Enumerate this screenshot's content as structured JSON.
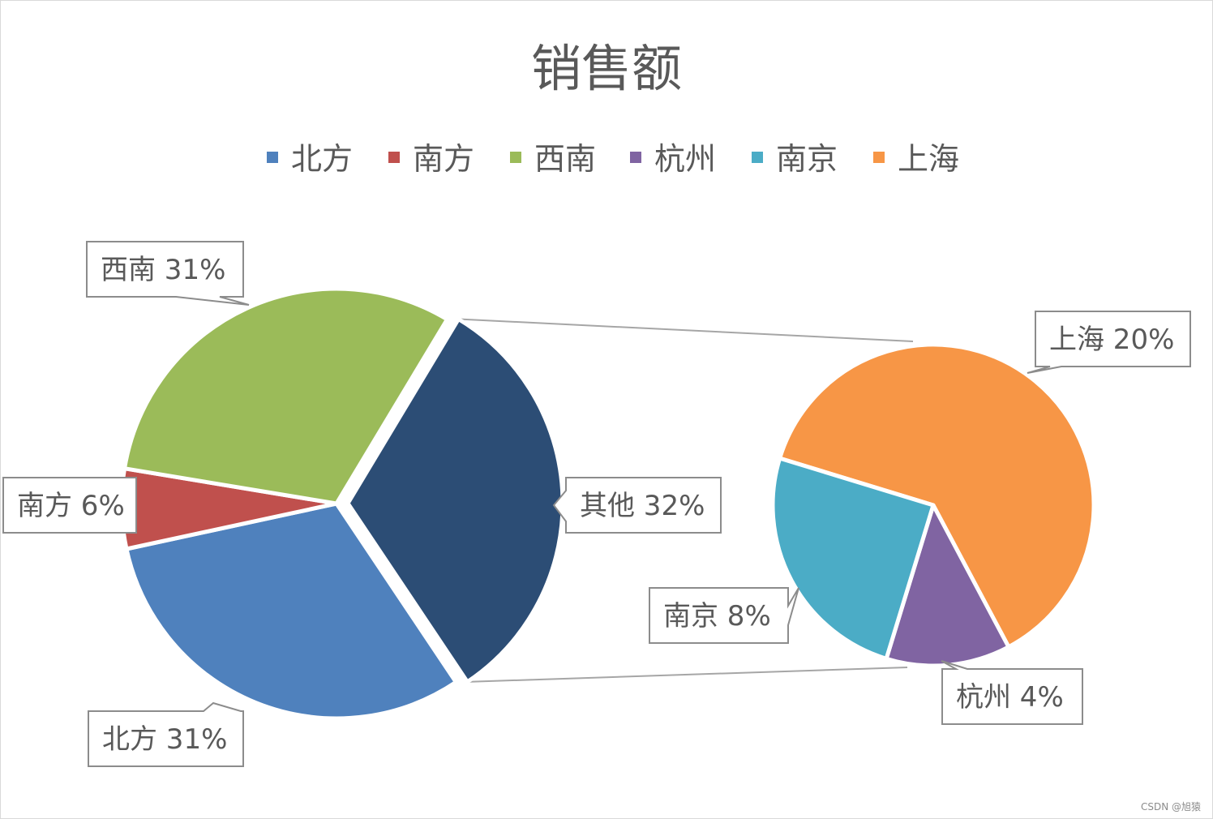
{
  "watermark": "CSDN @旭猿",
  "chart_data": {
    "type": "pie",
    "subtype": "pie-of-pie",
    "title": "销售额",
    "legend_position": "top",
    "legend": [
      "北方",
      "南方",
      "西南",
      "杭州",
      "南京",
      "上海"
    ],
    "primary": {
      "slices": [
        {
          "name": "北方",
          "percent": 31,
          "label": "北方 31%",
          "color": "#4F81BD"
        },
        {
          "name": "南方",
          "percent": 6,
          "label": "南方 6%",
          "color": "#C0504D"
        },
        {
          "name": "西南",
          "percent": 31,
          "label": "西南 31%",
          "color": "#9BBB59"
        },
        {
          "name": "其他",
          "percent": 32,
          "label": "其他 32%",
          "color": "#2C4D75"
        }
      ]
    },
    "secondary": {
      "slices": [
        {
          "name": "上海",
          "percent": 20,
          "label": "上海 20%",
          "color": "#F79646"
        },
        {
          "name": "杭州",
          "percent": 4,
          "label": "杭州 4%",
          "color": "#8064A2"
        },
        {
          "name": "南京",
          "percent": 8,
          "label": "南京 8%",
          "color": "#4BACC6"
        }
      ]
    },
    "legend_colors": {
      "北方": "#4F81BD",
      "南方": "#C0504D",
      "西南": "#9BBB59",
      "杭州": "#8064A2",
      "南京": "#4BACC6",
      "上海": "#F79646"
    }
  }
}
